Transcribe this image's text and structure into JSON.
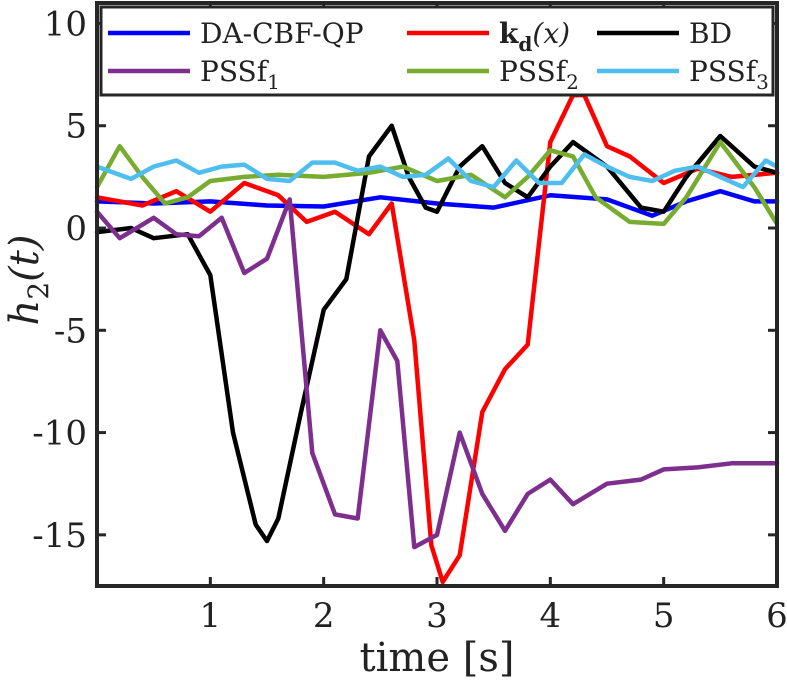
{
  "chart_data": {
    "type": "line",
    "xlabel": "time [s]",
    "ylabel": "h2(t)",
    "xlim": [
      0,
      6
    ],
    "ylim": [
      -17.5,
      11
    ],
    "x_ticks": [
      1,
      2,
      3,
      4,
      5,
      6
    ],
    "x_tick_labels": [
      "1",
      "2",
      "3",
      "4",
      "5",
      "6"
    ],
    "y_ticks": [
      -15,
      -10,
      -5,
      0,
      5,
      10
    ],
    "y_tick_labels": [
      "-15",
      "-10",
      "-5",
      "0",
      "5",
      "10"
    ],
    "grid": false,
    "legend_position": "top",
    "series": [
      {
        "name": "DA-CBF-QP",
        "color": "#0000ff",
        "x": [
          0,
          0.5,
          1,
          1.5,
          2,
          2.5,
          3,
          3.5,
          4,
          4.5,
          4.9,
          5.2,
          5.5,
          5.8,
          6
        ],
        "y": [
          1.3,
          1.2,
          1.3,
          1.1,
          1.05,
          1.5,
          1.2,
          1.0,
          1.6,
          1.4,
          0.6,
          1.3,
          1.8,
          1.3,
          1.3
        ]
      },
      {
        "name": "kd(x)",
        "color": "#ff0000",
        "x": [
          0,
          0.4,
          0.7,
          1.0,
          1.3,
          1.6,
          1.85,
          2.1,
          2.4,
          2.6,
          2.8,
          2.95,
          3.05,
          3.2,
          3.4,
          3.6,
          3.8,
          4.0,
          4.2,
          4.3,
          4.5,
          4.7,
          5.0,
          5.3,
          5.6,
          6
        ],
        "y": [
          1.5,
          1.1,
          1.8,
          0.8,
          2.2,
          1.6,
          0.3,
          0.8,
          -0.3,
          1.2,
          -5.5,
          -15.5,
          -17.3,
          -16,
          -9,
          -6.9,
          -5.7,
          4.2,
          6.5,
          6.5,
          4.0,
          3.5,
          2.2,
          2.9,
          2.5,
          2.7
        ]
      },
      {
        "name": "BD",
        "color": "#000000",
        "x": [
          0,
          0.3,
          0.5,
          0.8,
          1.0,
          1.2,
          1.4,
          1.5,
          1.6,
          1.8,
          2.0,
          2.2,
          2.4,
          2.6,
          2.75,
          2.9,
          3.0,
          3.2,
          3.4,
          3.6,
          3.8,
          4.0,
          4.2,
          4.5,
          4.8,
          5.0,
          5.2,
          5.5,
          5.8,
          6
        ],
        "y": [
          -0.2,
          0.0,
          -0.5,
          -0.3,
          -2.3,
          -10,
          -14.5,
          -15.3,
          -14.2,
          -9,
          -4,
          -2.5,
          3.5,
          5.0,
          2.5,
          1.0,
          0.8,
          3.0,
          4.0,
          2.2,
          1.5,
          3.0,
          4.2,
          3.0,
          1.0,
          0.8,
          2.5,
          4.5,
          3.0,
          2.7
        ]
      },
      {
        "name": "PSSf1",
        "color": "#7e2f8e",
        "x": [
          0,
          0.2,
          0.5,
          0.7,
          0.9,
          1.1,
          1.3,
          1.5,
          1.7,
          1.9,
          2.1,
          2.3,
          2.5,
          2.65,
          2.8,
          3.0,
          3.2,
          3.4,
          3.6,
          3.8,
          4.0,
          4.2,
          4.5,
          4.8,
          5.0,
          5.3,
          5.6,
          6
        ],
        "y": [
          0.8,
          -0.5,
          0.5,
          -0.3,
          -0.4,
          0.5,
          -2.2,
          -1.5,
          1.4,
          -11,
          -14,
          -14.2,
          -5,
          -6.5,
          -15.6,
          -15,
          -10,
          -13,
          -14.8,
          -13,
          -12.3,
          -13.5,
          -12.5,
          -12.3,
          -11.8,
          -11.7,
          -11.5,
          -11.5
        ]
      },
      {
        "name": "PSSf2",
        "color": "#77ac30",
        "x": [
          0,
          0.2,
          0.4,
          0.6,
          0.8,
          1.0,
          1.3,
          1.6,
          2.0,
          2.4,
          2.7,
          3.0,
          3.3,
          3.6,
          3.8,
          4.0,
          4.2,
          4.4,
          4.7,
          5.0,
          5.2,
          5.5,
          5.8,
          6
        ],
        "y": [
          2.0,
          4.0,
          2.5,
          1.2,
          1.5,
          2.3,
          2.5,
          2.6,
          2.5,
          2.7,
          3.0,
          2.3,
          2.6,
          1.5,
          2.5,
          3.8,
          3.5,
          1.5,
          0.3,
          0.2,
          1.5,
          4.2,
          2.0,
          0.2
        ]
      },
      {
        "name": "PSSf3",
        "color": "#4dbeee",
        "x": [
          0,
          0.3,
          0.5,
          0.7,
          0.9,
          1.1,
          1.3,
          1.5,
          1.7,
          1.9,
          2.1,
          2.3,
          2.5,
          2.7,
          2.9,
          3.1,
          3.3,
          3.5,
          3.7,
          3.9,
          4.1,
          4.3,
          4.5,
          4.7,
          4.9,
          5.1,
          5.3,
          5.5,
          5.7,
          5.9,
          6
        ],
        "y": [
          3.0,
          2.4,
          3.0,
          3.3,
          2.7,
          3.0,
          3.1,
          2.4,
          2.3,
          3.2,
          3.2,
          2.8,
          3.0,
          2.5,
          2.6,
          3.4,
          2.3,
          2.0,
          3.3,
          2.2,
          2.2,
          3.6,
          3.0,
          2.5,
          2.3,
          2.8,
          3.0,
          2.5,
          2.0,
          3.3,
          3.0
        ]
      }
    ]
  }
}
